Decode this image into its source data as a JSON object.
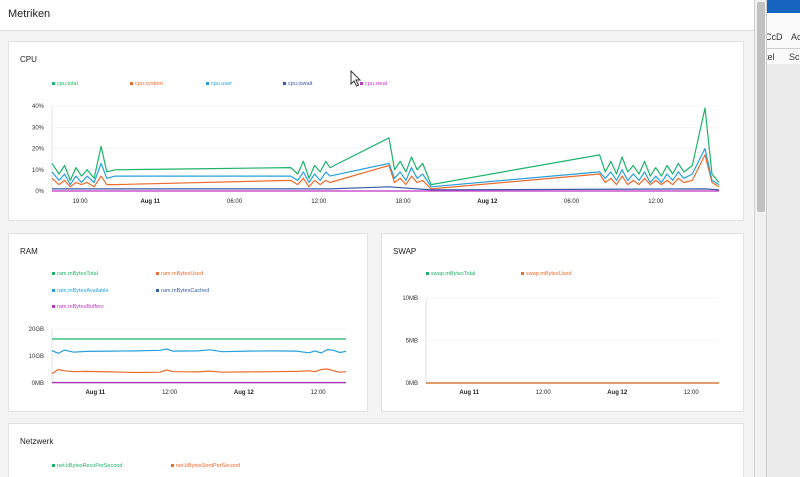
{
  "dialog": {
    "title": "Metriken"
  },
  "background_app": {
    "tabs": [
      "CcD",
      "Ac"
    ],
    "sub_tabs": [
      "tel",
      "Sch"
    ]
  },
  "cpu": {
    "title": "CPU",
    "legend": [
      {
        "label": "cpu.total",
        "color": "#1db36b"
      },
      {
        "label": "cpu.system",
        "color": "#ec6b2d"
      },
      {
        "label": "cpu.user",
        "color": "#26a0dc"
      },
      {
        "label": "cpu.iowait",
        "color": "#3a5ba8"
      },
      {
        "label": "cpu.steal",
        "color": "#c233c2"
      }
    ],
    "chart_data": {
      "type": "line",
      "title": "CPU",
      "y_tick_labels": [
        "0%",
        "10%",
        "20%",
        "30%",
        "40%"
      ],
      "ylim": [
        0,
        40
      ],
      "x_tick_labels": [
        {
          "t": 0.5,
          "label": "19:00",
          "bold": false
        },
        {
          "t": 5.5,
          "label": "Aug 11",
          "bold": true
        },
        {
          "t": 11.5,
          "label": "06:00",
          "bold": false
        },
        {
          "t": 17.5,
          "label": "12:00",
          "bold": false
        },
        {
          "t": 23.5,
          "label": "18:00",
          "bold": false
        },
        {
          "t": 29.5,
          "label": "Aug 12",
          "bold": true
        },
        {
          "t": 35.5,
          "label": "06:00",
          "bold": false
        },
        {
          "t": 41.5,
          "label": "12:00",
          "bold": false
        }
      ],
      "xlim": [
        -1.5,
        46
      ],
      "series": [
        {
          "name": "cpu.total",
          "color": "#1db36b",
          "points": [
            [
              -1.5,
              13
            ],
            [
              -1.0,
              8
            ],
            [
              -0.6,
              12
            ],
            [
              -0.2,
              5
            ],
            [
              0.2,
              11
            ],
            [
              0.6,
              7
            ],
            [
              1.0,
              10
            ],
            [
              1.5,
              6
            ],
            [
              2.0,
              21
            ],
            [
              2.4,
              9
            ],
            [
              3.0,
              10
            ],
            [
              15.5,
              11
            ],
            [
              16.0,
              8
            ],
            [
              16.4,
              14
            ],
            [
              16.8,
              6
            ],
            [
              17.2,
              12
            ],
            [
              17.6,
              9
            ],
            [
              18.0,
              14
            ],
            [
              18.3,
              11
            ],
            [
              22.5,
              25
            ],
            [
              22.9,
              10
            ],
            [
              23.3,
              14
            ],
            [
              23.7,
              9
            ],
            [
              24.1,
              16
            ],
            [
              24.5,
              10
            ],
            [
              24.9,
              13
            ],
            [
              25.5,
              3
            ],
            [
              37.5,
              17
            ],
            [
              37.9,
              9
            ],
            [
              38.3,
              14
            ],
            [
              38.7,
              8
            ],
            [
              39.1,
              16
            ],
            [
              39.5,
              9
            ],
            [
              39.9,
              12
            ],
            [
              40.3,
              8
            ],
            [
              40.7,
              14
            ],
            [
              41.1,
              7
            ],
            [
              41.5,
              11
            ],
            [
              41.9,
              7
            ],
            [
              42.3,
              12
            ],
            [
              42.7,
              8
            ],
            [
              43.1,
              13
            ],
            [
              43.5,
              9
            ],
            [
              44.1,
              12
            ],
            [
              45.0,
              39
            ],
            [
              45.5,
              8
            ],
            [
              46,
              4
            ]
          ]
        },
        {
          "name": "cpu.system",
          "color": "#ec6b2d",
          "points": [
            [
              -1.5,
              6
            ],
            [
              -1.0,
              3
            ],
            [
              -0.6,
              5
            ],
            [
              -0.2,
              2
            ],
            [
              0.2,
              4
            ],
            [
              0.6,
              3
            ],
            [
              1.0,
              4
            ],
            [
              1.5,
              2
            ],
            [
              2.0,
              7
            ],
            [
              2.4,
              3
            ],
            [
              3.0,
              3
            ],
            [
              15.5,
              5
            ],
            [
              16.0,
              3
            ],
            [
              16.4,
              6
            ],
            [
              16.8,
              2
            ],
            [
              17.2,
              5
            ],
            [
              17.6,
              3
            ],
            [
              18.0,
              5
            ],
            [
              18.3,
              4
            ],
            [
              22.5,
              12
            ],
            [
              22.9,
              4
            ],
            [
              23.3,
              6
            ],
            [
              23.7,
              3
            ],
            [
              24.1,
              7
            ],
            [
              24.5,
              4
            ],
            [
              24.9,
              5
            ],
            [
              25.5,
              1
            ],
            [
              37.5,
              8
            ],
            [
              37.9,
              4
            ],
            [
              38.3,
              6
            ],
            [
              38.7,
              3
            ],
            [
              39.1,
              7
            ],
            [
              39.5,
              3
            ],
            [
              39.9,
              5
            ],
            [
              40.3,
              3
            ],
            [
              40.7,
              6
            ],
            [
              41.1,
              3
            ],
            [
              41.5,
              5
            ],
            [
              41.9,
              3
            ],
            [
              42.3,
              5
            ],
            [
              42.7,
              3
            ],
            [
              43.1,
              6
            ],
            [
              43.5,
              4
            ],
            [
              44.1,
              5
            ],
            [
              45.0,
              17
            ],
            [
              45.5,
              4
            ],
            [
              46,
              2
            ]
          ]
        },
        {
          "name": "cpu.user",
          "color": "#26a0dc",
          "points": [
            [
              -1.5,
              9
            ],
            [
              -1.0,
              5
            ],
            [
              -0.6,
              8
            ],
            [
              -0.2,
              3
            ],
            [
              0.2,
              7
            ],
            [
              0.6,
              4
            ],
            [
              1.0,
              7
            ],
            [
              1.5,
              4
            ],
            [
              2.0,
              13
            ],
            [
              2.4,
              6
            ],
            [
              3.0,
              7
            ],
            [
              15.5,
              7
            ],
            [
              16.0,
              5
            ],
            [
              16.4,
              9
            ],
            [
              16.8,
              4
            ],
            [
              17.2,
              8
            ],
            [
              17.6,
              5
            ],
            [
              18.0,
              9
            ],
            [
              18.3,
              7
            ],
            [
              22.5,
              13
            ],
            [
              22.9,
              6
            ],
            [
              23.3,
              9
            ],
            [
              23.7,
              5
            ],
            [
              24.1,
              11
            ],
            [
              24.5,
              6
            ],
            [
              24.9,
              8
            ],
            [
              25.5,
              2
            ],
            [
              37.5,
              9
            ],
            [
              37.9,
              6
            ],
            [
              38.3,
              9
            ],
            [
              38.7,
              5
            ],
            [
              39.1,
              10
            ],
            [
              39.5,
              5
            ],
            [
              39.9,
              8
            ],
            [
              40.3,
              5
            ],
            [
              40.7,
              9
            ],
            [
              41.1,
              4
            ],
            [
              41.5,
              7
            ],
            [
              41.9,
              4
            ],
            [
              42.3,
              8
            ],
            [
              42.7,
              5
            ],
            [
              43.1,
              9
            ],
            [
              43.5,
              6
            ],
            [
              44.1,
              8
            ],
            [
              45.0,
              20
            ],
            [
              45.5,
              5
            ],
            [
              46,
              3
            ]
          ]
        },
        {
          "name": "cpu.iowait",
          "color": "#3a5ba8",
          "points": [
            [
              -1.5,
              1
            ],
            [
              3.0,
              1
            ],
            [
              15.5,
              1
            ],
            [
              18.3,
              1
            ],
            [
              22.5,
              2
            ],
            [
              25.5,
              0.5
            ],
            [
              45.0,
              1
            ],
            [
              46,
              0.5
            ]
          ]
        },
        {
          "name": "cpu.steal",
          "color": "#c233c2",
          "points": [
            [
              -1.5,
              0
            ],
            [
              46,
              0
            ]
          ]
        }
      ]
    }
  },
  "ram": {
    "title": "RAM",
    "legend": [
      {
        "label": "ram.mBytesTotal",
        "color": "#1db36b"
      },
      {
        "label": "ram.mBytesUsed",
        "color": "#ec6b2d"
      },
      {
        "label": "ram.mBytesAvailable",
        "color": "#26a0dc"
      },
      {
        "label": "ram.mBytesCached",
        "color": "#3a5ba8"
      },
      {
        "label": "ram.mBytesBuffers",
        "color": "#c233c2"
      }
    ],
    "chart_data": {
      "type": "line",
      "title": "RAM",
      "y_tick_labels": [
        "0MB",
        "10GB",
        "20GB"
      ],
      "ylim": [
        0,
        20
      ],
      "x_tick_labels": [
        {
          "t": 5.5,
          "label": "Aug 11",
          "bold": true
        },
        {
          "t": 17.5,
          "label": "12:00",
          "bold": false
        },
        {
          "t": 29.5,
          "label": "Aug 12",
          "bold": true
        },
        {
          "t": 41.5,
          "label": "12:00",
          "bold": false
        }
      ],
      "xlim": [
        -1.5,
        46
      ],
      "series": [
        {
          "name": "ram.mBytesTotal",
          "color": "#1db36b",
          "points": [
            [
              -1.5,
              16.3
            ],
            [
              46,
              16.3
            ]
          ]
        },
        {
          "name": "ram.mBytesAvailable",
          "color": "#26a0dc",
          "points": [
            [
              -1.5,
              12
            ],
            [
              -0.5,
              11
            ],
            [
              0.5,
              12.2
            ],
            [
              2,
              11.4
            ],
            [
              4,
              11.7
            ],
            [
              8,
              11.8
            ],
            [
              12,
              11.9
            ],
            [
              16,
              12.1
            ],
            [
              17,
              12.6
            ],
            [
              18,
              11.8
            ],
            [
              22,
              11.9
            ],
            [
              24,
              12.3
            ],
            [
              26,
              11.6
            ],
            [
              30,
              11.8
            ],
            [
              34,
              11.9
            ],
            [
              38,
              11.8
            ],
            [
              40,
              11.2
            ],
            [
              41,
              11.9
            ],
            [
              42,
              11.1
            ],
            [
              43,
              12.4
            ],
            [
              44,
              12.1
            ],
            [
              45,
              11.3
            ],
            [
              46,
              11.7
            ]
          ]
        },
        {
          "name": "ram.mBytesUsed",
          "color": "#ec6b2d",
          "points": [
            [
              -1.5,
              3.5
            ],
            [
              -0.5,
              5
            ],
            [
              0.5,
              4.5
            ],
            [
              2,
              4.2
            ],
            [
              4,
              4.3
            ],
            [
              8,
              4.1
            ],
            [
              12,
              3.9
            ],
            [
              16,
              4.0
            ],
            [
              17,
              4.8
            ],
            [
              18,
              4.2
            ],
            [
              22,
              4.1
            ],
            [
              24,
              4.4
            ],
            [
              26,
              4.0
            ],
            [
              30,
              4.1
            ],
            [
              34,
              4.2
            ],
            [
              38,
              4.3
            ],
            [
              40,
              4.5
            ],
            [
              41,
              4.2
            ],
            [
              42,
              5.0
            ],
            [
              43,
              5.2
            ],
            [
              44,
              4.5
            ],
            [
              45,
              4.0
            ],
            [
              46,
              4.2
            ]
          ]
        },
        {
          "name": "ram.mBytesCached",
          "color": "#3a5ba8",
          "points": [
            [
              -1.5,
              0.2
            ],
            [
              46,
              0.2
            ]
          ]
        },
        {
          "name": "ram.mBytesBuffers",
          "color": "#c233c2",
          "points": [
            [
              -1.5,
              0.1
            ],
            [
              46,
              0.1
            ]
          ]
        }
      ]
    }
  },
  "swap": {
    "title": "SWAP",
    "legend": [
      {
        "label": "swap.mBytesTotal",
        "color": "#1db36b"
      },
      {
        "label": "swap.mBytesUsed",
        "color": "#ec6b2d"
      }
    ],
    "chart_data": {
      "type": "line",
      "title": "SWAP",
      "y_tick_labels": [
        "0MB",
        "5MB",
        "10MB"
      ],
      "ylim": [
        0,
        10
      ],
      "x_tick_labels": [
        {
          "t": 5.5,
          "label": "Aug 11",
          "bold": true
        },
        {
          "t": 17.5,
          "label": "12:00",
          "bold": false
        },
        {
          "t": 29.5,
          "label": "Aug 12",
          "bold": true
        },
        {
          "t": 41.5,
          "label": "12:00",
          "bold": false
        }
      ],
      "xlim": [
        -1.5,
        46
      ],
      "series": [
        {
          "name": "swap.mBytesTotal",
          "color": "#1db36b",
          "points": [
            [
              -1.5,
              0
            ],
            [
              46,
              0
            ]
          ]
        },
        {
          "name": "swap.mBytesUsed",
          "color": "#ec6b2d",
          "points": [
            [
              -1.5,
              0
            ],
            [
              46,
              0
            ]
          ]
        }
      ]
    }
  },
  "network": {
    "title": "Netzwerk",
    "legend": [
      {
        "label": "net.kBytesRecvPerSecond",
        "color": "#1db36b"
      },
      {
        "label": "net.kBytesSentPerSecond",
        "color": "#ec6b2d"
      }
    ]
  }
}
